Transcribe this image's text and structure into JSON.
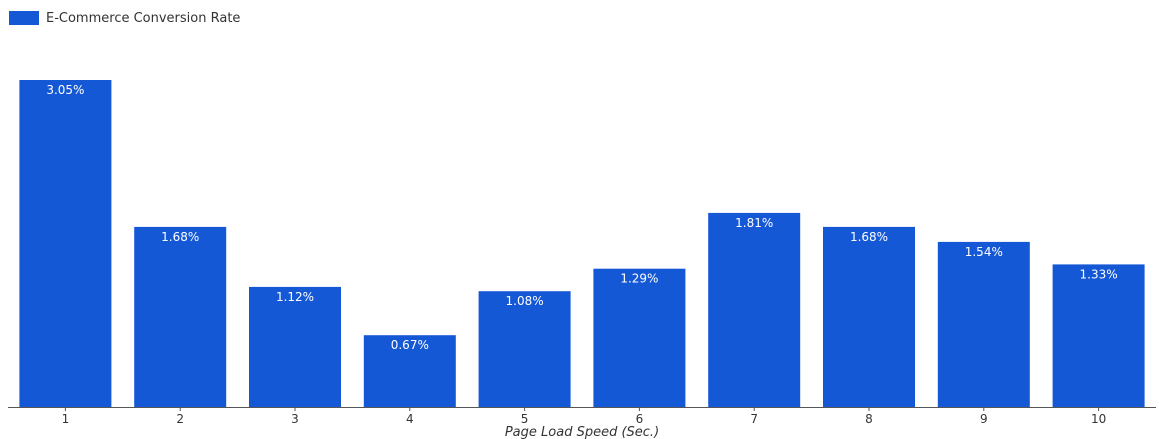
{
  "colors": {
    "bar": "#1558d6",
    "axis": "#555555",
    "text": "#333333",
    "bar_label": "#ffffff"
  },
  "chart_data": {
    "type": "bar",
    "categories": [
      "1",
      "2",
      "3",
      "4",
      "5",
      "6",
      "7",
      "8",
      "9",
      "10"
    ],
    "series": [
      {
        "name": "E-Commerce Conversion Rate",
        "values": [
          3.05,
          1.68,
          1.12,
          0.67,
          1.08,
          1.29,
          1.81,
          1.68,
          1.54,
          1.33
        ]
      }
    ],
    "data_labels": [
      "3.05%",
      "1.68%",
      "1.12%",
      "0.67%",
      "1.08%",
      "1.29%",
      "1.81%",
      "1.68%",
      "1.54%",
      "1.33%"
    ],
    "title": "",
    "xlabel": "Page Load Speed (Sec.)",
    "ylabel": "",
    "ylim": [
      0,
      3.05
    ],
    "grid": false,
    "legend": "top-left",
    "y_axis_visible": false
  }
}
